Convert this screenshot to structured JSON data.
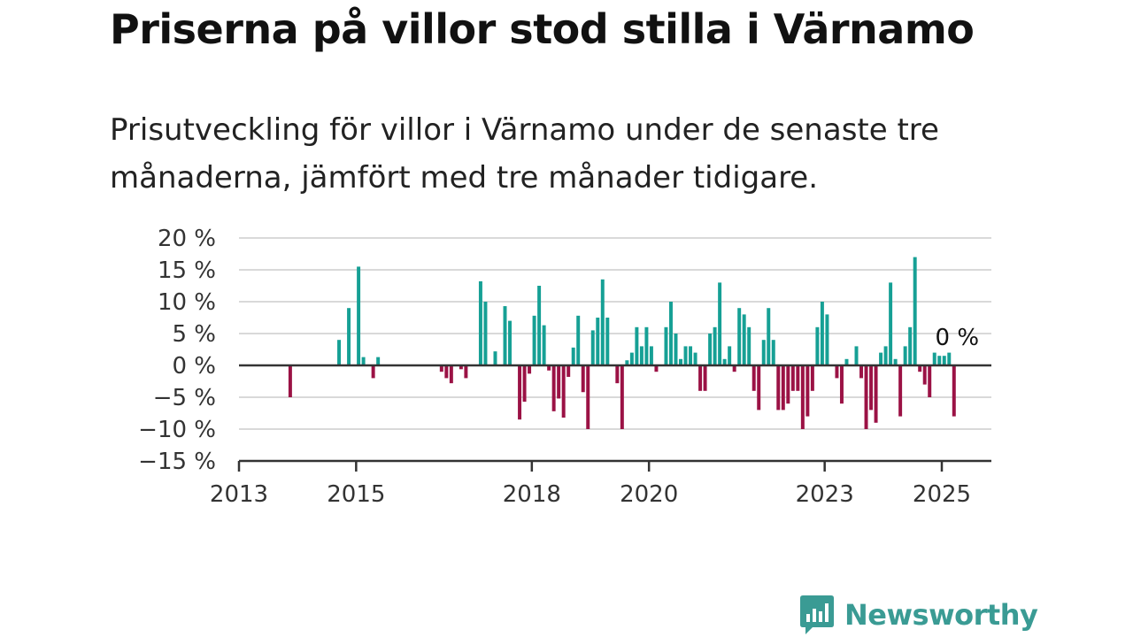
{
  "title": "Priserna på villor stod stilla i Värnamo",
  "subtitle": "Prisutveckling för villor i Värnamo under de senaste tre månaderna, jämfört med tre månader tidigare.",
  "brand": "Newsworthy",
  "colors": {
    "positive": "#16a095",
    "negative": "#9b1245",
    "axis": "#333333",
    "grid": "#d9d9d9",
    "brand": "#3a9b94"
  },
  "chart_data": {
    "type": "bar",
    "ylim": [
      -15,
      20
    ],
    "yticks": [
      20,
      15,
      10,
      5,
      0,
      -5,
      -10,
      -15
    ],
    "ytick_labels": [
      "20 %",
      "15 %",
      "10 %",
      "5 %",
      "0 %",
      "−5 %",
      "−10 %",
      "−15 %"
    ],
    "xticks": [
      "2013",
      "2015",
      "2018",
      "2020",
      "2023",
      "2025"
    ],
    "end_label": "0 %",
    "grid": true,
    "series": [
      {
        "values": [
          {
            "x": "2013-11",
            "y": -5
          },
          {
            "x": "2014-09",
            "y": 4
          },
          {
            "x": "2014-11",
            "y": 9
          },
          {
            "x": "2015-01",
            "y": 15.5
          },
          {
            "x": "2015-02",
            "y": 1.3
          },
          {
            "x": "2015-04",
            "y": -2
          },
          {
            "x": "2015-05",
            "y": 1.3
          },
          {
            "x": "2016-06",
            "y": -1
          },
          {
            "x": "2016-07",
            "y": -2
          },
          {
            "x": "2016-08",
            "y": -2.8
          },
          {
            "x": "2016-10",
            "y": -0.6
          },
          {
            "x": "2016-11",
            "y": -2
          },
          {
            "x": "2017-02",
            "y": 13.2
          },
          {
            "x": "2017-03",
            "y": 10
          },
          {
            "x": "2017-05",
            "y": 2.2
          },
          {
            "x": "2017-07",
            "y": 9.3
          },
          {
            "x": "2017-08",
            "y": 7
          },
          {
            "x": "2017-10",
            "y": -8.5
          },
          {
            "x": "2017-11",
            "y": -5.7
          },
          {
            "x": "2017-12",
            "y": -1.3
          },
          {
            "x": "2018-01",
            "y": 7.8
          },
          {
            "x": "2018-02",
            "y": 12.5
          },
          {
            "x": "2018-03",
            "y": 6.3
          },
          {
            "x": "2018-04",
            "y": -0.8
          },
          {
            "x": "2018-05",
            "y": -7.2
          },
          {
            "x": "2018-06",
            "y": -5.2
          },
          {
            "x": "2018-07",
            "y": -8.2
          },
          {
            "x": "2018-08",
            "y": -1.8
          },
          {
            "x": "2018-09",
            "y": 2.8
          },
          {
            "x": "2018-10",
            "y": 7.8
          },
          {
            "x": "2018-11",
            "y": -4.2
          },
          {
            "x": "2018-12",
            "y": -10
          },
          {
            "x": "2019-01",
            "y": 5.5
          },
          {
            "x": "2019-02",
            "y": 7.5
          },
          {
            "x": "2019-03",
            "y": 13.5
          },
          {
            "x": "2019-04",
            "y": 7.5
          },
          {
            "x": "2019-06",
            "y": -2.8
          },
          {
            "x": "2019-07",
            "y": -10
          },
          {
            "x": "2019-08",
            "y": 0.8
          },
          {
            "x": "2019-09",
            "y": 2
          },
          {
            "x": "2019-10",
            "y": 6
          },
          {
            "x": "2019-11",
            "y": 3
          },
          {
            "x": "2019-12",
            "y": 6
          },
          {
            "x": "2020-01",
            "y": 3
          },
          {
            "x": "2020-02",
            "y": -1
          },
          {
            "x": "2020-04",
            "y": 6
          },
          {
            "x": "2020-05",
            "y": 10
          },
          {
            "x": "2020-06",
            "y": 5
          },
          {
            "x": "2020-07",
            "y": 1
          },
          {
            "x": "2020-08",
            "y": 3
          },
          {
            "x": "2020-09",
            "y": 3
          },
          {
            "x": "2020-10",
            "y": 2
          },
          {
            "x": "2020-11",
            "y": -4
          },
          {
            "x": "2020-12",
            "y": -4
          },
          {
            "x": "2021-01",
            "y": 5
          },
          {
            "x": "2021-02",
            "y": 6
          },
          {
            "x": "2021-03",
            "y": 13
          },
          {
            "x": "2021-04",
            "y": 1
          },
          {
            "x": "2021-05",
            "y": 3
          },
          {
            "x": "2021-06",
            "y": -1
          },
          {
            "x": "2021-07",
            "y": 9
          },
          {
            "x": "2021-08",
            "y": 8
          },
          {
            "x": "2021-09",
            "y": 6
          },
          {
            "x": "2021-10",
            "y": -4
          },
          {
            "x": "2021-11",
            "y": -7
          },
          {
            "x": "2021-12",
            "y": 4
          },
          {
            "x": "2022-01",
            "y": 9
          },
          {
            "x": "2022-02",
            "y": 4
          },
          {
            "x": "2022-03",
            "y": -7
          },
          {
            "x": "2022-04",
            "y": -7
          },
          {
            "x": "2022-05",
            "y": -6
          },
          {
            "x": "2022-06",
            "y": -4
          },
          {
            "x": "2022-07",
            "y": -4
          },
          {
            "x": "2022-08",
            "y": -10
          },
          {
            "x": "2022-09",
            "y": -8
          },
          {
            "x": "2022-10",
            "y": -4
          },
          {
            "x": "2022-11",
            "y": 6
          },
          {
            "x": "2022-12",
            "y": 10
          },
          {
            "x": "2023-01",
            "y": 8
          },
          {
            "x": "2023-03",
            "y": -2
          },
          {
            "x": "2023-04",
            "y": -6
          },
          {
            "x": "2023-05",
            "y": 1
          },
          {
            "x": "2023-07",
            "y": 3
          },
          {
            "x": "2023-08",
            "y": -2
          },
          {
            "x": "2023-09",
            "y": -10
          },
          {
            "x": "2023-10",
            "y": -7
          },
          {
            "x": "2023-11",
            "y": -9
          },
          {
            "x": "2023-12",
            "y": 2
          },
          {
            "x": "2024-01",
            "y": 3
          },
          {
            "x": "2024-02",
            "y": 13
          },
          {
            "x": "2024-03",
            "y": 1
          },
          {
            "x": "2024-04",
            "y": -8
          },
          {
            "x": "2024-05",
            "y": 3
          },
          {
            "x": "2024-06",
            "y": 6
          },
          {
            "x": "2024-07",
            "y": 17
          },
          {
            "x": "2024-08",
            "y": -1
          },
          {
            "x": "2024-09",
            "y": -3
          },
          {
            "x": "2024-10",
            "y": -5
          },
          {
            "x": "2024-11",
            "y": 2
          },
          {
            "x": "2024-12",
            "y": 1.5
          },
          {
            "x": "2025-01",
            "y": 1.5
          },
          {
            "x": "2025-02",
            "y": 2
          },
          {
            "x": "2025-03",
            "y": -8
          },
          {
            "x": "2025-04",
            "y": 0
          }
        ]
      }
    ]
  }
}
